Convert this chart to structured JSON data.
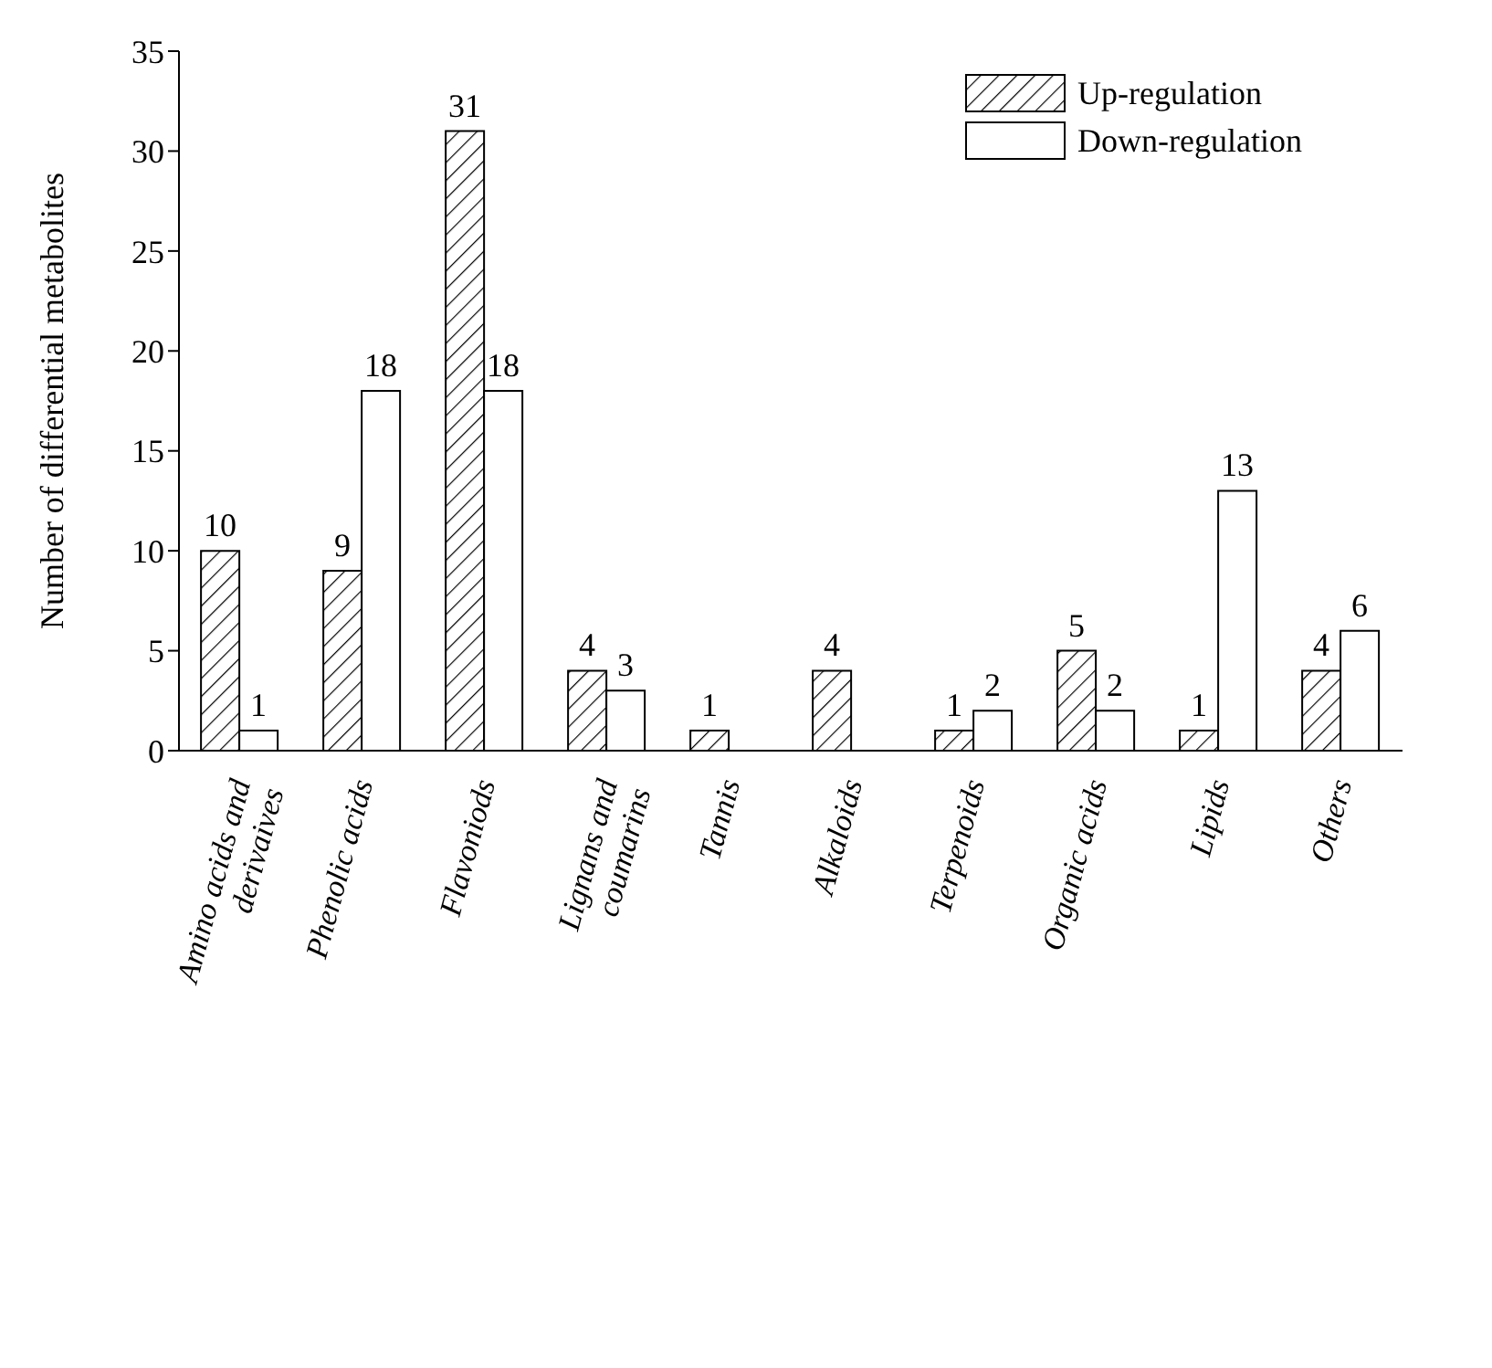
{
  "chart_data": {
    "type": "bar",
    "ylabel": "Number of differential metabolites",
    "categories": [
      "Amino acids and derivaives",
      "Phenolic acids",
      "Flavoniods",
      "Lignans and coumarins",
      "Tannis",
      "Alkaloids",
      "Terpenoids",
      "Organic acids",
      "Lipids",
      "Others"
    ],
    "series": [
      {
        "name": "Up-regulation",
        "color": "#000000",
        "values": [
          10,
          9,
          31,
          4,
          1,
          4,
          1,
          5,
          1,
          4
        ]
      },
      {
        "name": "Down-regulation",
        "color": "#ffffff",
        "values": [
          1,
          18,
          18,
          3,
          null,
          null,
          2,
          2,
          13,
          6
        ]
      }
    ],
    "ylim": [
      0,
      35
    ],
    "yticks": [
      0,
      5,
      10,
      15,
      20,
      25,
      30,
      35
    ],
    "legend": "top right",
    "data_labels": true
  }
}
